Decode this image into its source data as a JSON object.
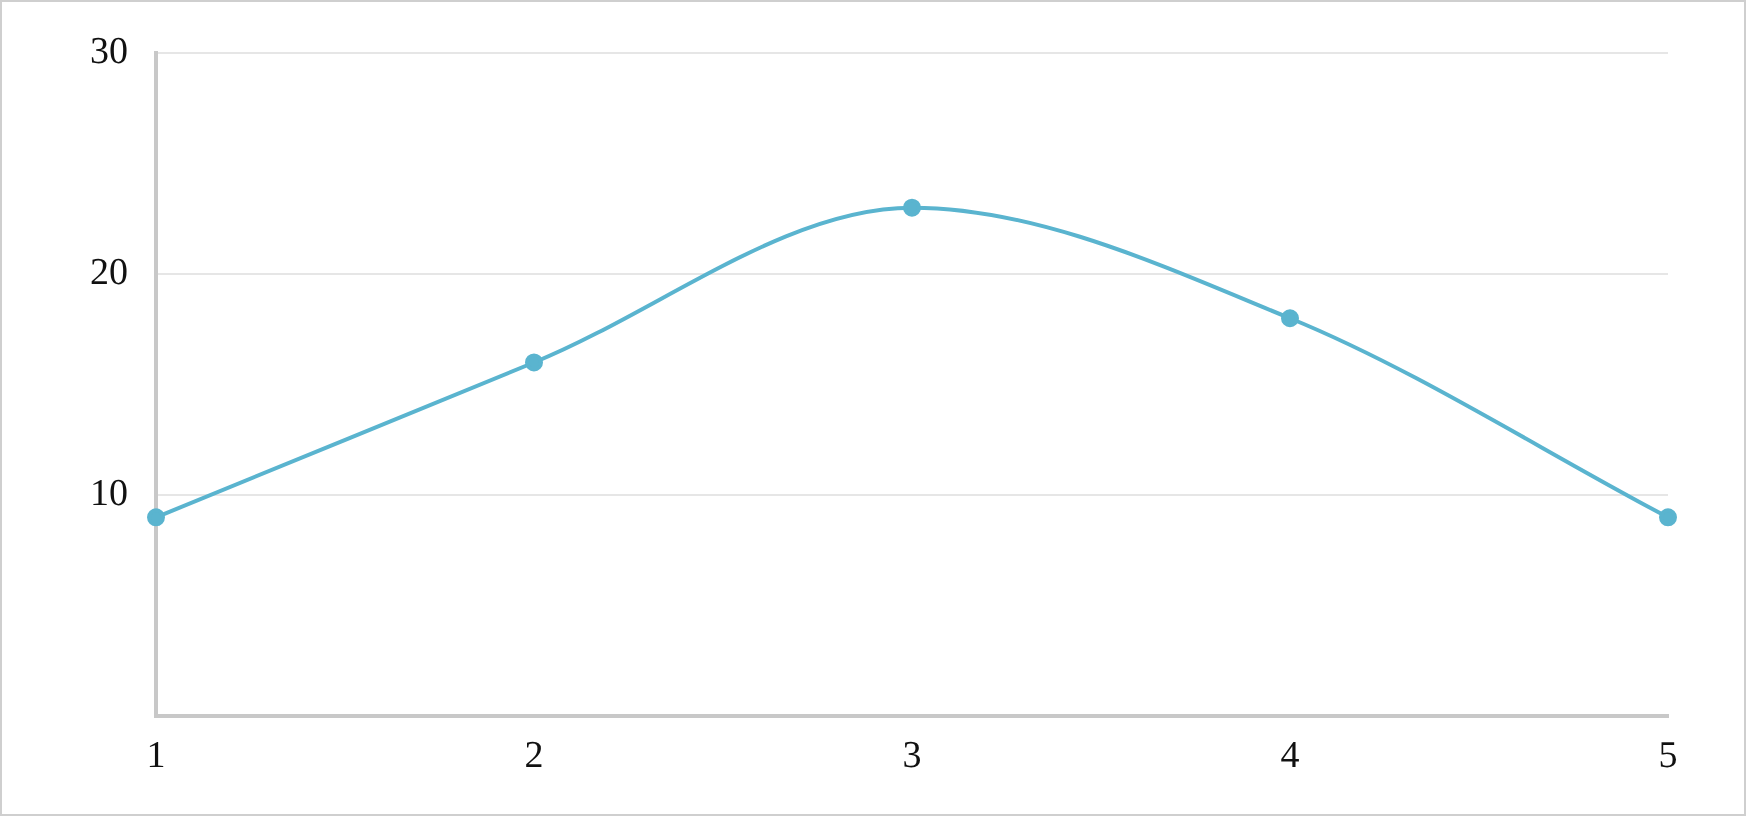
{
  "chart_data": {
    "type": "line",
    "categories": [
      "1",
      "2",
      "3",
      "4",
      "5"
    ],
    "series": [
      {
        "color": "#5ab4cf",
        "values": [
          9,
          16,
          23,
          18,
          9
        ]
      }
    ],
    "ylim": [
      0,
      30
    ],
    "yticks": [
      10,
      20,
      30
    ],
    "grid": "y",
    "legend": false,
    "marker": "circle",
    "line_style": "solid"
  }
}
